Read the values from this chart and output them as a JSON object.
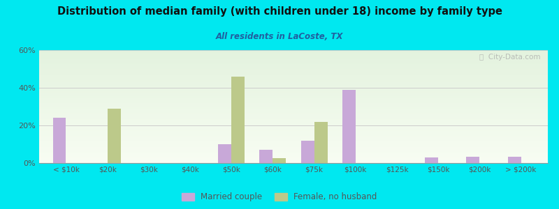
{
  "title": "Distribution of median family (with children under 18) income by family type",
  "subtitle": "All residents in LaCoste, TX",
  "categories": [
    "< $10k",
    "$20k",
    "$30k",
    "$40k",
    "$50k",
    "$60k",
    "$75k",
    "$100k",
    "$125k",
    "$150k",
    "$200k",
    "> $200k"
  ],
  "married_couple": [
    24,
    0,
    0,
    0,
    10,
    7,
    12,
    39,
    0,
    3,
    3.5,
    3.5
  ],
  "female_no_husband": [
    0,
    29,
    0,
    0,
    46,
    2.5,
    22,
    0,
    0,
    0,
    0,
    0
  ],
  "married_color": "#c8a8d8",
  "female_color": "#bcc98a",
  "bg_color": "#00e8f0",
  "title_color": "#111111",
  "subtitle_color": "#2060a0",
  "axis_label_color": "#555555",
  "grid_color": "#cccccc",
  "ylim": [
    0,
    60
  ],
  "yticks": [
    0,
    20,
    40,
    60
  ],
  "bar_width": 0.32,
  "watermark": "ⓘ  City-Data.com"
}
